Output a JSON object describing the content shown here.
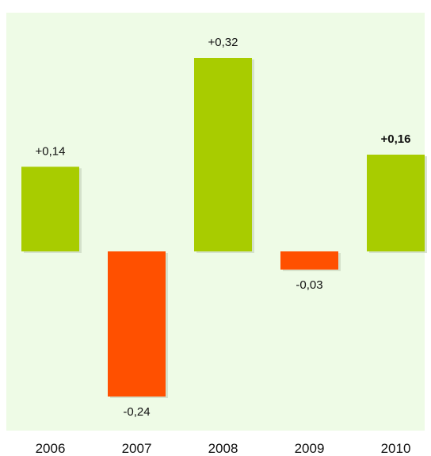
{
  "chart_data": {
    "type": "bar",
    "title": "",
    "xlabel": "",
    "ylabel": "",
    "categories": [
      "2006",
      "2007",
      "2008",
      "2009",
      "2010"
    ],
    "values": [
      0.14,
      -0.24,
      0.32,
      -0.03,
      0.16
    ],
    "value_labels": [
      "+0,14",
      "-0,24",
      "+0,32",
      "-0,03",
      "+0,16"
    ],
    "bold_value_labels": [
      false,
      false,
      false,
      false,
      true
    ],
    "ylim": [
      -0.3,
      0.4
    ],
    "grid": false,
    "legend": "none",
    "colors": {
      "positive": "#a8cc00",
      "negative": "#ff5000",
      "plot_background": "#eefbe6",
      "shadow": "#c9d6bf"
    }
  }
}
